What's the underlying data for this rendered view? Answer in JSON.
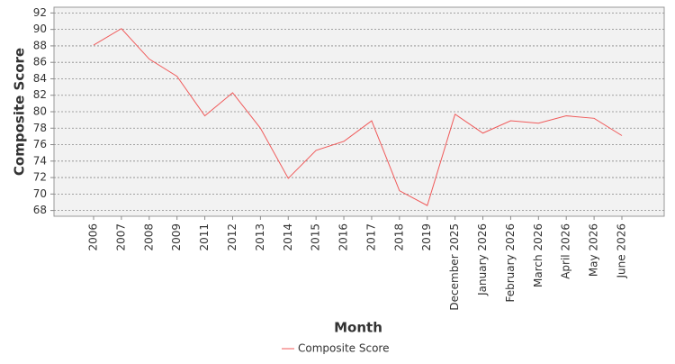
{
  "chart_data": {
    "type": "line",
    "x_label": "Month",
    "y_label": "Composite Score",
    "categories": [
      "2006",
      "2007",
      "2008",
      "2009",
      "2011",
      "2012",
      "2013",
      "2014",
      "2015",
      "2016",
      "2017",
      "2018",
      "2019",
      "December 2025",
      "January 2026",
      "February 2026",
      "March 2026",
      "April 2026",
      "May 2026",
      "June 2026"
    ],
    "series": [
      {
        "name": "Composite Score",
        "color": "#f05a5a",
        "values": [
          88.1,
          90.1,
          86.4,
          84.3,
          79.5,
          82.3,
          78.0,
          71.9,
          75.3,
          76.4,
          78.9,
          70.4,
          68.6,
          79.7,
          77.4,
          78.9,
          78.6,
          79.5,
          79.2,
          77.1
        ]
      }
    ],
    "ylim": [
      67.3,
      92.7
    ],
    "yticks": [
      68,
      70,
      72,
      74,
      76,
      78,
      80,
      82,
      84,
      86,
      88,
      90,
      92
    ],
    "grid": true,
    "legend": "bottom"
  }
}
